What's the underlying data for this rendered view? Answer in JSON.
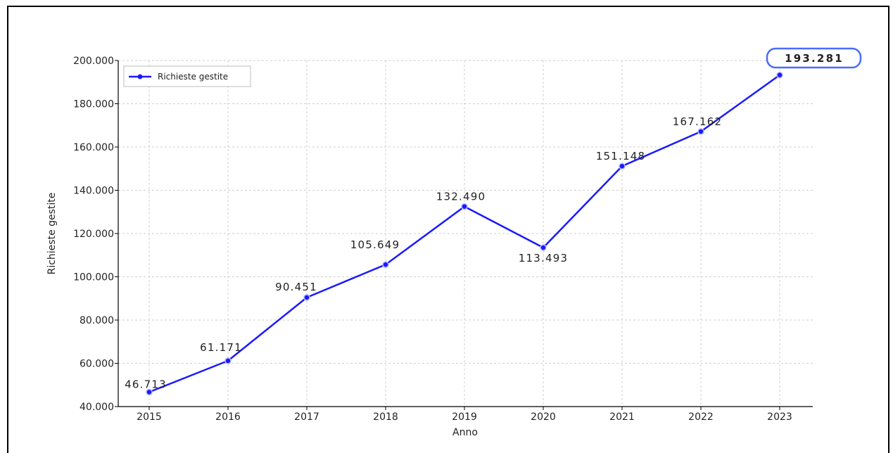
{
  "chart_data": {
    "type": "line",
    "xlabel": "Anno",
    "ylabel": "Richieste gestite",
    "ylim": [
      40000,
      200000
    ],
    "y_ticks": [
      "40.000",
      "60.000",
      "80.000",
      "100.000",
      "120.000",
      "140.000",
      "160.000",
      "180.000",
      "200.000"
    ],
    "x": [
      "2015",
      "2016",
      "2017",
      "2018",
      "2019",
      "2020",
      "2021",
      "2022",
      "2023"
    ],
    "series": [
      {
        "name": "Richieste gestite",
        "color": "#1a1aff",
        "values": [
          46713,
          61171,
          90451,
          105649,
          132490,
          113493,
          151148,
          167162,
          193281
        ],
        "labels": [
          "46.713",
          "61.171",
          "90.451",
          "105.649",
          "132.490",
          "113.493",
          "151.148",
          "167.162",
          "193.281"
        ]
      }
    ],
    "highlight": {
      "index": 8,
      "label": "193.281",
      "color": "#4a6cf7"
    },
    "grid": true,
    "legend_position": "top-left"
  }
}
